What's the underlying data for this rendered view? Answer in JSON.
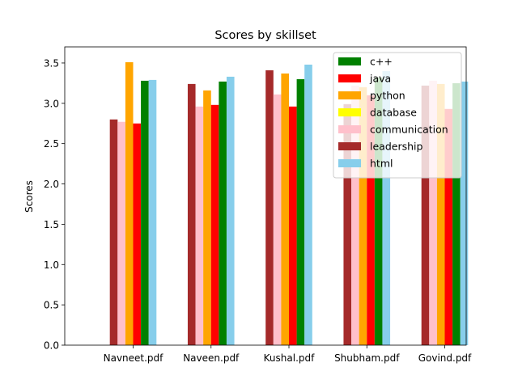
{
  "chart_data": {
    "type": "bar",
    "title": "Scores by skillset",
    "xlabel": "",
    "ylabel": "Scores",
    "ylim": [
      0,
      3.7
    ],
    "yticks": [
      0.0,
      0.5,
      1.0,
      1.5,
      2.0,
      2.5,
      3.0,
      3.5
    ],
    "ytick_labels": [
      "0.0",
      "0.5",
      "1.0",
      "1.5",
      "2.0",
      "2.5",
      "3.0",
      "3.5"
    ],
    "categories": [
      "Navneet.pdf",
      "Naveen.pdf",
      "Kushal.pdf",
      "Shubham.pdf",
      "Govind.pdf"
    ],
    "grid": false,
    "legend_position": "top-right",
    "bar_order": [
      "leadership",
      "communication",
      "python",
      "java",
      "c++",
      "html"
    ],
    "series": [
      {
        "name": "c++",
        "color": "#008000",
        "values": [
          3.28,
          3.27,
          3.3,
          3.32,
          3.25
        ]
      },
      {
        "name": "java",
        "color": "#ff0000",
        "values": [
          2.75,
          2.98,
          2.96,
          3.1,
          2.93
        ]
      },
      {
        "name": "python",
        "color": "#ffa500",
        "values": [
          3.51,
          3.16,
          3.37,
          3.2,
          3.24
        ]
      },
      {
        "name": "database",
        "color": "#ffff00",
        "values": [
          null,
          null,
          null,
          null,
          null
        ]
      },
      {
        "name": "communication",
        "color": "#ffc0cb",
        "values": [
          2.77,
          2.96,
          3.11,
          3.22,
          3.28
        ]
      },
      {
        "name": "leadership",
        "color": "#a52a2a",
        "values": [
          2.8,
          3.24,
          3.41,
          2.99,
          3.22
        ]
      },
      {
        "name": "html",
        "color": "#87ceeb",
        "values": [
          3.29,
          3.33,
          3.48,
          3.4,
          3.27
        ]
      }
    ]
  }
}
